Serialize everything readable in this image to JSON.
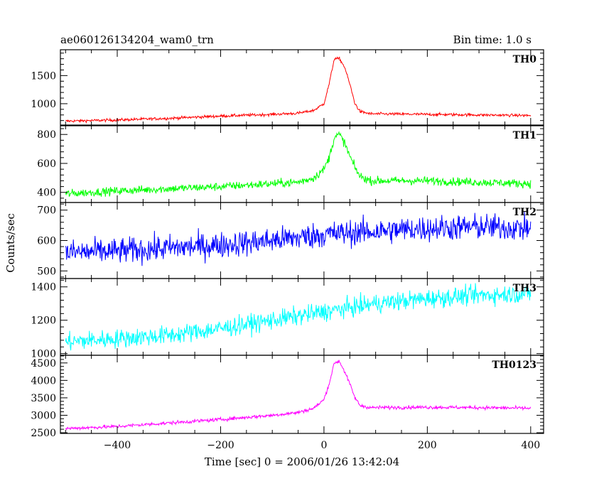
{
  "header": {
    "title": "ae060126134204_wam0_trn",
    "bin_time": "Bin time: 1.0 s"
  },
  "chart_data": {
    "type": "line",
    "title": "ae060126134204_wam0_trn",
    "subtitle": "Bin time: 1.0 s",
    "xlabel": "Time [sec] 0 = 2006/01/26 13:42:04",
    "ylabel": "Counts/sec",
    "xlim": [
      -510,
      425
    ],
    "x_ticks": [
      -400,
      -200,
      0,
      200,
      400
    ],
    "x_tick_labels": [
      "−400",
      "−200",
      "0",
      "200",
      "400"
    ],
    "x_range": [
      -500,
      400
    ],
    "grid": false,
    "panels": [
      {
        "name": "TH0",
        "color": "#ff0000",
        "ylim": [
          620,
          1960
        ],
        "y_ticks": [
          1000,
          1500
        ],
        "y_tick_labels": [
          "1000",
          "1500"
        ],
        "noise": 25,
        "points": [
          [
            -500,
            690
          ],
          [
            -400,
            710
          ],
          [
            -300,
            740
          ],
          [
            -200,
            780
          ],
          [
            -100,
            810
          ],
          [
            -50,
            830
          ],
          [
            -20,
            880
          ],
          [
            0,
            1000
          ],
          [
            10,
            1350
          ],
          [
            20,
            1800
          ],
          [
            30,
            1800
          ],
          [
            40,
            1650
          ],
          [
            50,
            1350
          ],
          [
            60,
            1000
          ],
          [
            70,
            860
          ],
          [
            90,
            820
          ],
          [
            200,
            810
          ],
          [
            300,
            800
          ],
          [
            400,
            790
          ]
        ]
      },
      {
        "name": "TH1",
        "color": "#00ff00",
        "ylim": [
          330,
          860
        ],
        "y_ticks": [
          400,
          600,
          800
        ],
        "y_tick_labels": [
          "400",
          "600",
          "800"
        ],
        "noise": 28,
        "points": [
          [
            -500,
            390
          ],
          [
            -400,
            410
          ],
          [
            -300,
            425
          ],
          [
            -200,
            440
          ],
          [
            -100,
            460
          ],
          [
            -50,
            470
          ],
          [
            -20,
            500
          ],
          [
            0,
            560
          ],
          [
            10,
            640
          ],
          [
            20,
            780
          ],
          [
            30,
            800
          ],
          [
            40,
            740
          ],
          [
            50,
            650
          ],
          [
            60,
            570
          ],
          [
            70,
            510
          ],
          [
            90,
            480
          ],
          [
            200,
            480
          ],
          [
            300,
            470
          ],
          [
            400,
            460
          ]
        ]
      },
      {
        "name": "TH2",
        "color": "#0000ff",
        "ylim": [
          475,
          725
        ],
        "y_ticks": [
          500,
          600,
          700
        ],
        "y_tick_labels": [
          "500",
          "600",
          "700"
        ],
        "noise": 42,
        "points": [
          [
            -500,
            560
          ],
          [
            -400,
            565
          ],
          [
            -300,
            575
          ],
          [
            -200,
            585
          ],
          [
            -100,
            600
          ],
          [
            0,
            620
          ],
          [
            100,
            630
          ],
          [
            200,
            640
          ],
          [
            300,
            645
          ],
          [
            400,
            640
          ]
        ]
      },
      {
        "name": "TH3",
        "color": "#00ffff",
        "ylim": [
          990,
          1450
        ],
        "y_ticks": [
          1000,
          1200,
          1400
        ],
        "y_tick_labels": [
          "1000",
          "1200",
          "1400"
        ],
        "noise": 55,
        "points": [
          [
            -500,
            1070
          ],
          [
            -400,
            1090
          ],
          [
            -300,
            1110
          ],
          [
            -200,
            1150
          ],
          [
            -100,
            1200
          ],
          [
            0,
            1250
          ],
          [
            100,
            1300
          ],
          [
            200,
            1330
          ],
          [
            300,
            1350
          ],
          [
            400,
            1360
          ]
        ]
      },
      {
        "name": "TH0123",
        "color": "#ff00ff",
        "ylim": [
          2480,
          4720
        ],
        "y_ticks": [
          2500,
          3000,
          3500,
          4000,
          4500
        ],
        "y_tick_labels": [
          "2500",
          "3000",
          "3500",
          "4000",
          "4500"
        ],
        "noise": 50,
        "points": [
          [
            -500,
            2620
          ],
          [
            -400,
            2680
          ],
          [
            -300,
            2780
          ],
          [
            -200,
            2880
          ],
          [
            -100,
            3000
          ],
          [
            -50,
            3080
          ],
          [
            -20,
            3200
          ],
          [
            0,
            3450
          ],
          [
            10,
            3900
          ],
          [
            20,
            4500
          ],
          [
            30,
            4550
          ],
          [
            40,
            4250
          ],
          [
            50,
            3900
          ],
          [
            60,
            3500
          ],
          [
            70,
            3280
          ],
          [
            90,
            3220
          ],
          [
            200,
            3230
          ],
          [
            300,
            3220
          ],
          [
            400,
            3200
          ]
        ]
      }
    ]
  }
}
